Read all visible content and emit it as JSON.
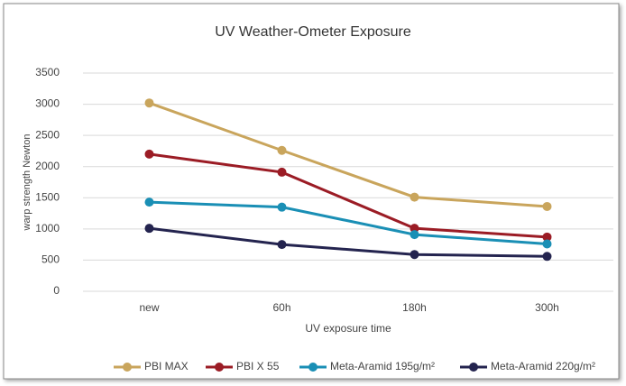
{
  "chart_data": {
    "type": "line",
    "title": "UV Weather-Ometer Exposure",
    "x_label": "UV exposure time",
    "y_label": "warp strength Newton",
    "categories": [
      "new",
      "60h",
      "180h",
      "300h"
    ],
    "series": [
      {
        "name": "PBI MAX",
        "color": "#c9a55c",
        "values": [
          3020,
          2260,
          1510,
          1360
        ]
      },
      {
        "name": "PBI X 55",
        "color": "#9b1c25",
        "values": [
          2200,
          1910,
          1010,
          870
        ]
      },
      {
        "name": "Meta-Aramid 195g/m²",
        "color": "#1a8fb5",
        "values": [
          1430,
          1350,
          910,
          760
        ]
      },
      {
        "name": "Meta-Aramid 220g/m²",
        "color": "#24244f",
        "values": [
          1010,
          750,
          590,
          560
        ]
      }
    ],
    "ylim": [
      0,
      3500
    ],
    "yticks": [
      0,
      500,
      1000,
      1500,
      2000,
      2500,
      3000,
      3500
    ],
    "grid": true,
    "legend": "bottom"
  }
}
